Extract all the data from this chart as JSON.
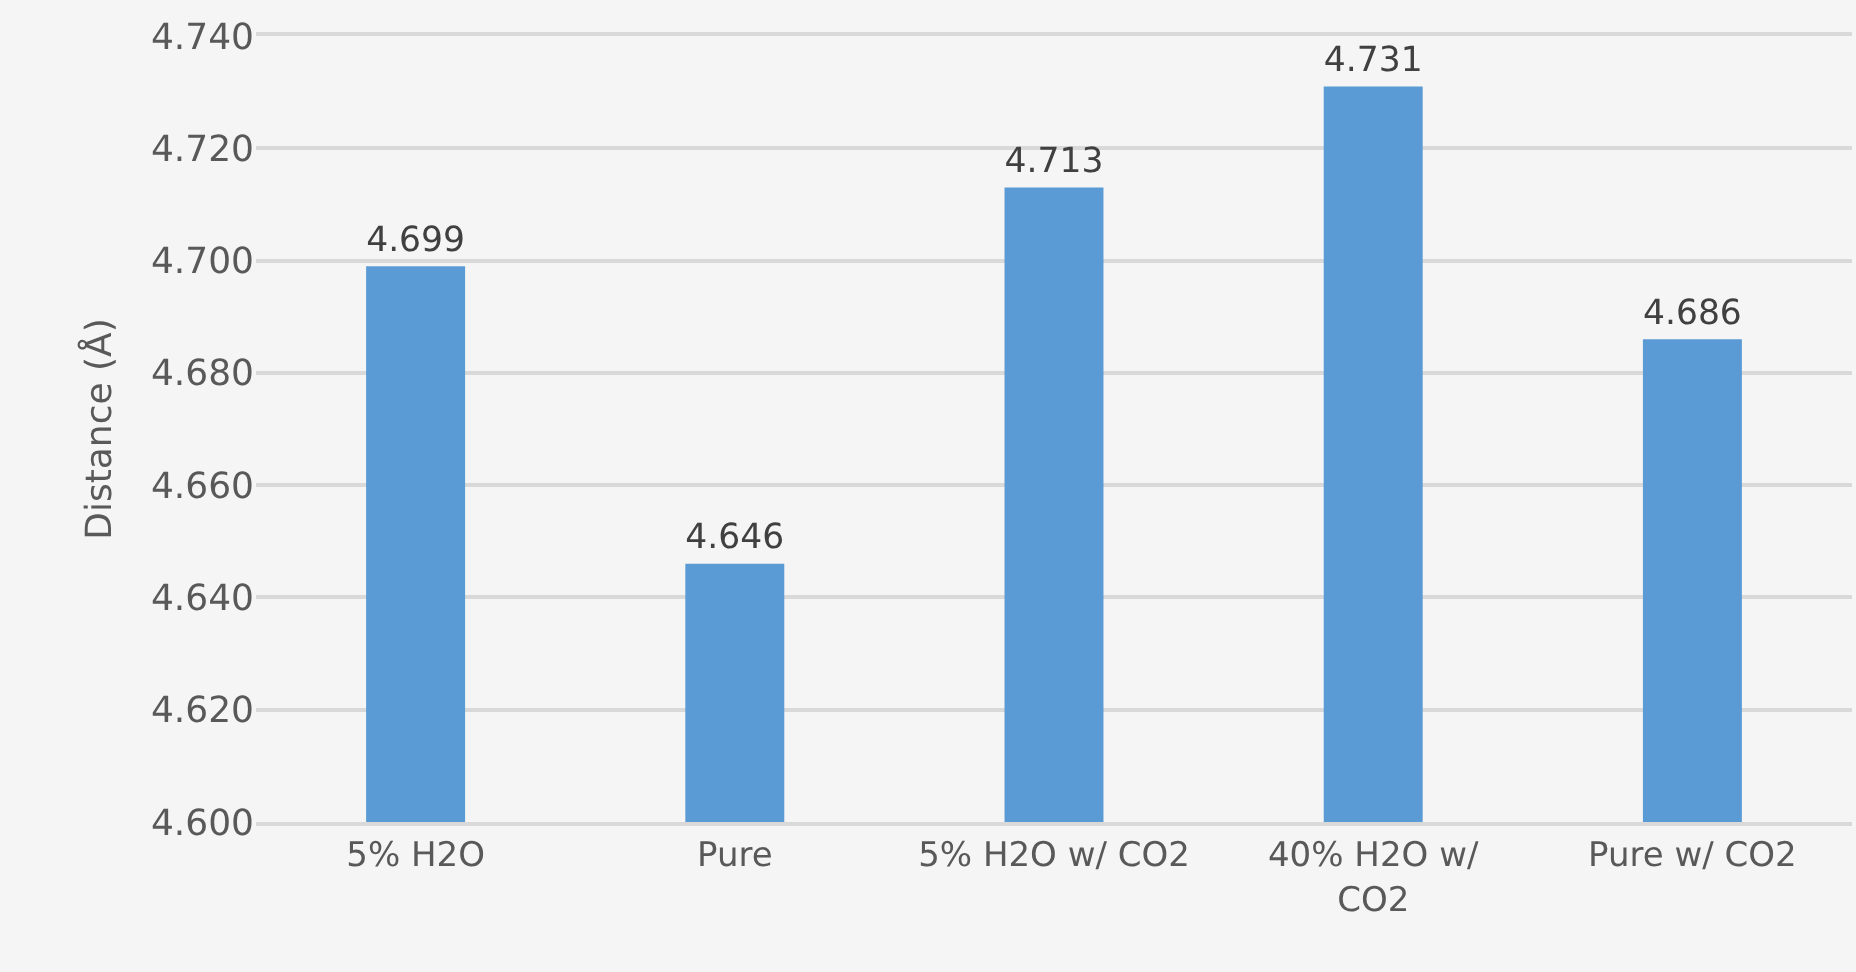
{
  "chart_data": {
    "type": "bar",
    "ylabel": "Distance (Å)",
    "categories": [
      "5% H2O",
      "Pure",
      "5% H2O w/ CO2",
      "40% H2O w/ CO2",
      "Pure w/ CO2"
    ],
    "values": [
      4.699,
      4.646,
      4.713,
      4.731,
      4.686
    ],
    "color": "#5b9bd5",
    "ylim": [
      4.6,
      4.74
    ],
    "yticks": [
      {
        "value": 4.6,
        "label": "4.600"
      },
      {
        "value": 4.62,
        "label": "4.620"
      },
      {
        "value": 4.64,
        "label": "4.640"
      },
      {
        "value": 4.66,
        "label": "4.660"
      },
      {
        "value": 4.68,
        "label": "4.680"
      },
      {
        "value": 4.7,
        "label": "4.700"
      },
      {
        "value": 4.72,
        "label": "4.720"
      },
      {
        "value": 4.74,
        "label": "4.740"
      }
    ],
    "data_labels": true,
    "grid": "y"
  }
}
